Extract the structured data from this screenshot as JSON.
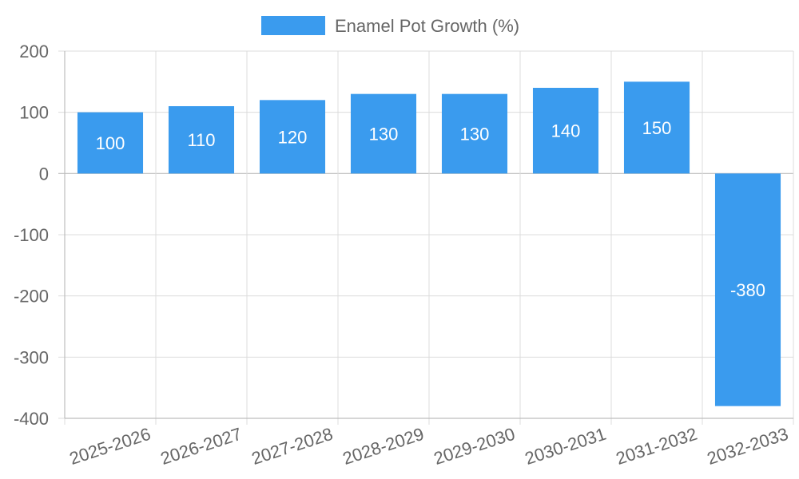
{
  "chart_data": {
    "type": "bar",
    "title": "",
    "xlabel": "",
    "ylabel": "",
    "categories": [
      "2025-2026",
      "2026-2027",
      "2027-2028",
      "2028-2029",
      "2029-2030",
      "2030-2031",
      "2031-2032",
      "2032-2033"
    ],
    "series": [
      {
        "name": "Enamel Pot Growth (%)",
        "values": [
          100,
          110,
          120,
          130,
          130,
          140,
          150,
          -380
        ],
        "color": "#3a9bee"
      }
    ],
    "ylim": [
      -400,
      200
    ],
    "yticks": [
      200,
      100,
      0,
      -100,
      -200,
      -300,
      -400
    ],
    "grid": true,
    "legend_position": "top-center",
    "data_labels": true
  }
}
